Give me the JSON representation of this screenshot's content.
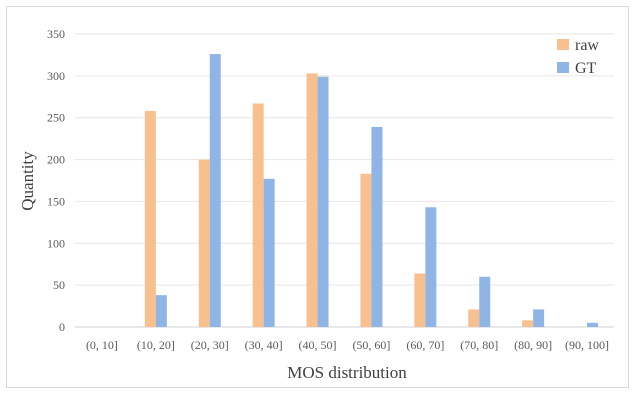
{
  "chart_data": {
    "type": "bar",
    "title": "",
    "xlabel": "MOS distribution",
    "ylabel": "Quantity",
    "categories": [
      "(0, 10]",
      "(10, 20]",
      "(20, 30]",
      "(30, 40]",
      "(40, 50]",
      "(50, 60]",
      "(60, 70]",
      "(70, 80]",
      "(80, 90]",
      "(90, 100]"
    ],
    "ylim": [
      0,
      350
    ],
    "yticks": [
      0,
      50,
      100,
      150,
      200,
      250,
      300,
      350
    ],
    "grid": true,
    "legend_position": "top-right",
    "series": [
      {
        "name": "raw",
        "color": "#F8C08F",
        "values": [
          0,
          258,
          200,
          267,
          303,
          183,
          64,
          21,
          8,
          0
        ]
      },
      {
        "name": "GT",
        "color": "#8FB4E6",
        "values": [
          0,
          38,
          326,
          177,
          299,
          239,
          143,
          60,
          21,
          5
        ]
      }
    ]
  }
}
